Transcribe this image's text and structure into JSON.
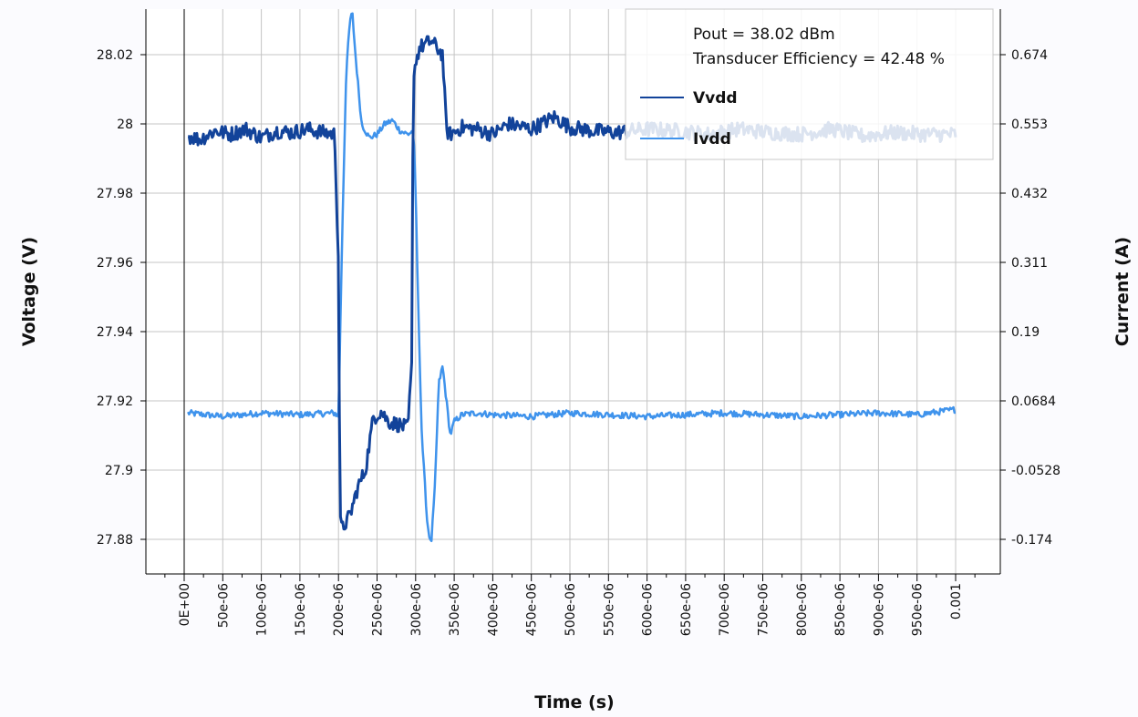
{
  "chart_data": {
    "type": "line",
    "xlabel": "Time (s)",
    "ylabel_left": "Voltage (V)",
    "ylabel_right": "Current (A)",
    "x_range": [
      0,
      0.001
    ],
    "x_ticks": [
      "0E+00",
      "50e-06",
      "100e-06",
      "150e-06",
      "200e-06",
      "250e-06",
      "300e-06",
      "350e-06",
      "400e-06",
      "450e-06",
      "500e-06",
      "550e-06",
      "600e-06",
      "650e-06",
      "700e-06",
      "750e-06",
      "800e-06",
      "850e-06",
      "900e-06",
      "950e-06",
      "0.001"
    ],
    "y_left_ticks": [
      "28.02",
      "28",
      "27.98",
      "27.96",
      "27.94",
      "27.92",
      "27.9",
      "27.88"
    ],
    "y_left_range": [
      27.871,
      28.034
    ],
    "y_right_ticks": [
      "0.674",
      "0.553",
      "0.432",
      "0.311",
      "0.19",
      "0.0684",
      "-0.0528",
      "-0.174"
    ],
    "grid": true,
    "legend_position": "top-right",
    "annotations": [
      "Pout = 38.02 dBm",
      "Transducer Efficiency = 42.48 %"
    ],
    "colors": {
      "vvdd": "#12439a",
      "ivdd": "#3f93ec",
      "grid": "#c4c4c4"
    },
    "series": [
      {
        "name": "Vvdd",
        "axis": "left",
        "x": [
          5e-06,
          2e-05,
          4e-05,
          6e-05,
          8e-05,
          0.0001,
          0.00012,
          0.00014,
          0.00016,
          0.00018,
          0.000195,
          0.0002,
          0.000202,
          0.000205,
          0.000215,
          0.000225,
          0.000235,
          0.000245,
          0.000255,
          0.000265,
          0.00028,
          0.00029,
          0.000295,
          0.000297,
          0.000305,
          0.00032,
          0.000335,
          0.00034,
          0.000345,
          0.00036,
          0.00038,
          0.0004,
          0.00042,
          0.00045,
          0.00048,
          0.0005,
          0.00053,
          0.00056,
          0.0006,
          0.00064,
          0.00068,
          0.00072,
          0.00076,
          0.0008,
          0.00084,
          0.00088,
          0.00092,
          0.00096,
          0.001
        ],
        "y": [
          27.9965,
          27.9955,
          27.998,
          27.997,
          27.9985,
          27.996,
          27.998,
          27.9975,
          27.9985,
          27.9975,
          27.997,
          27.96,
          27.885,
          27.883,
          27.887,
          27.895,
          27.9,
          27.915,
          27.917,
          27.914,
          27.913,
          27.912,
          27.93,
          28.015,
          28.022,
          28.024,
          28.02,
          27.998,
          27.997,
          27.999,
          27.9985,
          27.997,
          28.0,
          27.9985,
          28.002,
          27.999,
          27.998,
          27.9975,
          27.9985,
          27.998,
          27.997,
          27.9985,
          27.9975,
          27.997,
          27.9985,
          27.9965,
          27.9975,
          27.997,
          27.997
        ]
      },
      {
        "name": "Ivdd",
        "axis": "left",
        "x": [
          5e-06,
          5e-05,
          0.0001,
          0.00015,
          0.000195,
          0.0002,
          0.000205,
          0.00021,
          0.000215,
          0.000218,
          0.000222,
          0.00023,
          0.00024,
          0.00025,
          0.00026,
          0.00027,
          0.00028,
          0.00029,
          0.000297,
          0.0003,
          0.000303,
          0.000308,
          0.000315,
          0.00032,
          0.000325,
          0.00033,
          0.000335,
          0.00034,
          0.000345,
          0.00035,
          0.00036,
          0.00038,
          0.0004,
          0.00045,
          0.0005,
          0.00055,
          0.0006,
          0.00065,
          0.0007,
          0.00075,
          0.0008,
          0.00085,
          0.0009,
          0.00095,
          0.001
        ],
        "y": [
          27.9165,
          27.9155,
          27.9165,
          27.916,
          27.9165,
          27.9155,
          27.97,
          28.015,
          28.03,
          28.032,
          28.02,
          28.0,
          27.996,
          27.997,
          28.0,
          28.001,
          27.998,
          27.997,
          27.998,
          27.98,
          27.95,
          27.91,
          27.885,
          27.878,
          27.895,
          27.925,
          27.93,
          27.92,
          27.91,
          27.914,
          27.916,
          27.9165,
          27.916,
          27.9155,
          27.9165,
          27.916,
          27.9155,
          27.916,
          27.9165,
          27.916,
          27.9155,
          27.916,
          27.9165,
          27.916,
          27.9175
        ]
      }
    ]
  }
}
